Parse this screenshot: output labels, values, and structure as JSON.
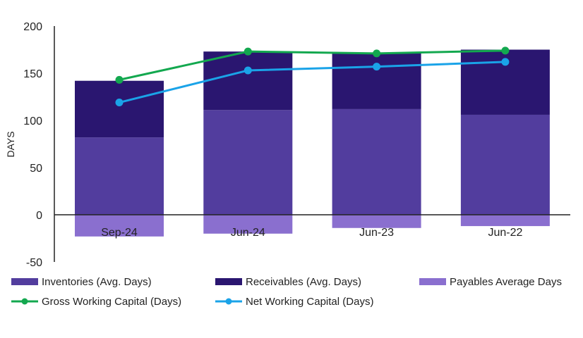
{
  "chart_data": {
    "type": "bar",
    "categories": [
      "Sep-24",
      "Jun-24",
      "Jun-23",
      "Jun-22"
    ],
    "ylabel": "DAYS",
    "ylim": [
      -50,
      200
    ],
    "yticks": [
      200,
      150,
      100,
      50,
      0,
      -50
    ],
    "grid": false,
    "legend_position": "bottom",
    "stack_series": [
      {
        "name": "Inventories (Avg. Days)",
        "color": "#523d9e",
        "values": [
          82,
          111,
          112,
          106
        ]
      },
      {
        "name": "Receivables (Avg. Days)",
        "color": "#2a1670",
        "values": [
          60,
          62,
          59,
          69
        ]
      },
      {
        "name": "Payables Average Days",
        "color": "#8a6fcf",
        "values": [
          -23,
          -20,
          -14,
          -12
        ]
      }
    ],
    "line_series": [
      {
        "name": "Gross Working Capital (Days)",
        "color": "#13a84f",
        "values": [
          143,
          173,
          171,
          174
        ]
      },
      {
        "name": "Net Working Capital (Days)",
        "color": "#1aa3e8",
        "values": [
          119,
          153,
          157,
          162
        ]
      }
    ]
  }
}
